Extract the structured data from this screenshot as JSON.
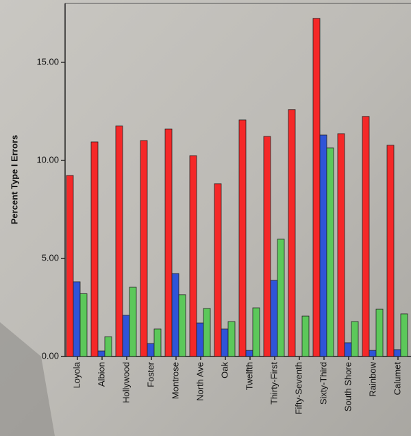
{
  "chart_data": {
    "type": "bar",
    "y_label": "Percent Type I Errors",
    "categories": [
      "Loyola",
      "Albion",
      "Hollywood",
      "Foster",
      "Montrose",
      "North Ave",
      "Oak",
      "Twelfth",
      "Thirty-First",
      "Fifty-Seventh",
      "Sixty-Third",
      "South Shore",
      "Rainbow",
      "Calumet"
    ],
    "series": [
      {
        "color": "#f52828",
        "values": [
          9.23,
          10.94,
          11.75,
          11.01,
          11.6,
          10.24,
          8.81,
          12.06,
          11.22,
          12.59,
          17.24,
          11.36,
          12.24,
          10.77
        ]
      },
      {
        "color": "#2f54d8",
        "values": [
          3.81,
          0.28,
          2.1,
          0.66,
          4.23,
          1.71,
          1.4,
          0.31,
          3.88,
          null,
          11.29,
          0.7,
          0.31,
          0.35
        ]
      },
      {
        "color": "#5cc85a",
        "values": [
          3.2,
          1.01,
          3.53,
          1.4,
          3.15,
          2.45,
          1.78,
          2.48,
          5.98,
          2.06,
          10.63,
          1.78,
          2.41,
          2.17
        ]
      }
    ],
    "ylim": [
      0,
      18
    ],
    "yticks": [
      {
        "value": 0,
        "label": "0.00"
      },
      {
        "value": 5,
        "label": "5.00"
      },
      {
        "value": 10,
        "label": "10.00"
      },
      {
        "value": 15,
        "label": "15.00"
      }
    ]
  }
}
